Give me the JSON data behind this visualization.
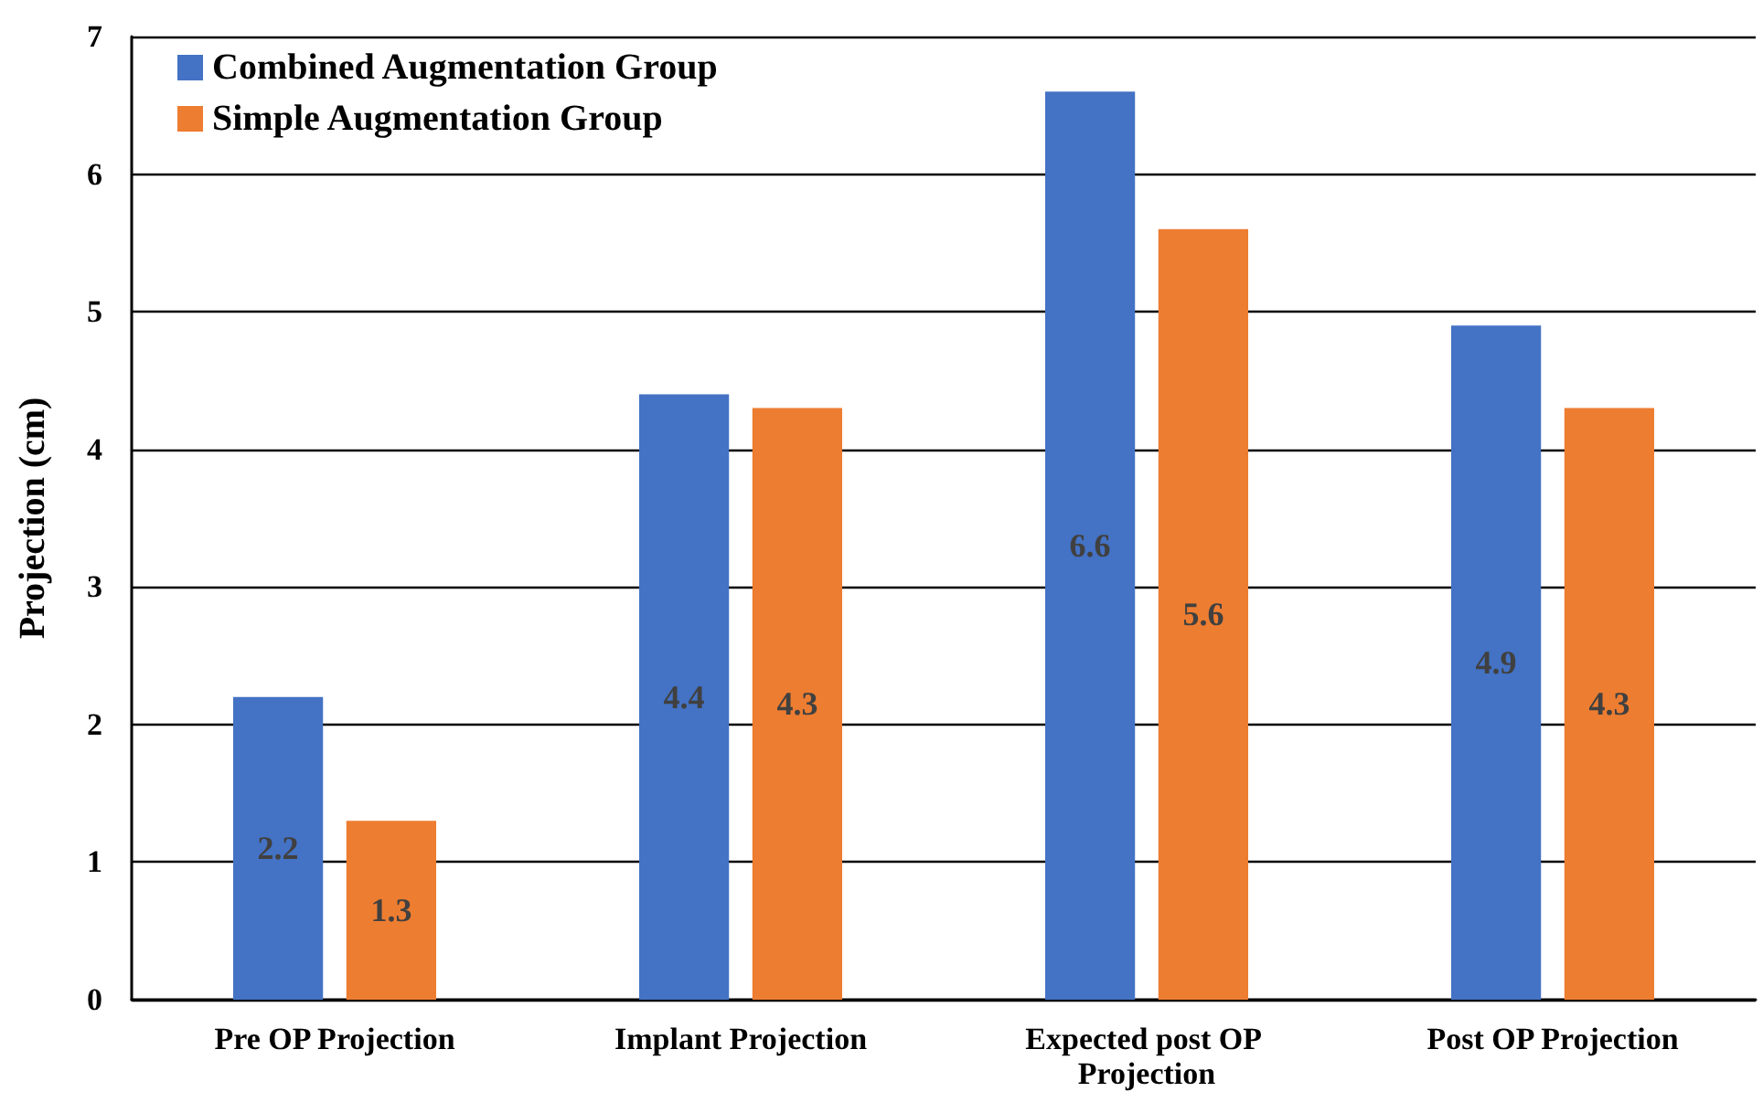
{
  "chart_data": {
    "type": "bar",
    "ylabel": "Projection (cm)",
    "categories": [
      "Pre OP Projection",
      "Implant Projection",
      "Expected post OP Projection",
      "Post OP Projection"
    ],
    "series": [
      {
        "name": "Combined Augmentation Group",
        "color": "#4472c4",
        "values": [
          2.2,
          4.4,
          6.6,
          4.9
        ]
      },
      {
        "name": "Simple Augmentation Group",
        "color": "#ed7d31",
        "values": [
          1.3,
          4.3,
          5.6,
          4.3
        ]
      }
    ],
    "ylim": [
      0,
      7
    ],
    "yticks": [
      0,
      1,
      2,
      3,
      4,
      5,
      6,
      7
    ],
    "grid": "y",
    "legend": "top left",
    "data_labels": true
  }
}
